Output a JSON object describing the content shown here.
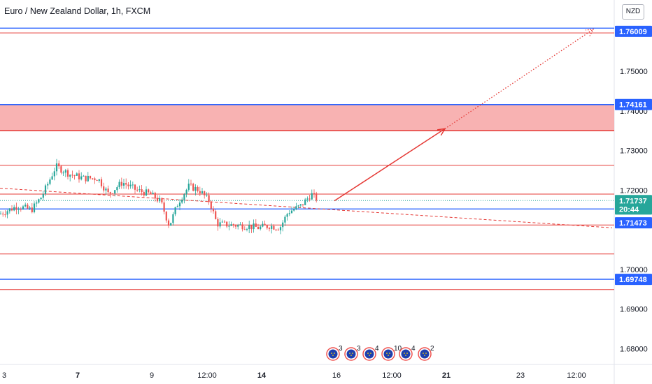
{
  "header": {
    "title": "Euro / New Zealand Dollar, 1h, FXCM",
    "currency_button": "NZD"
  },
  "chart_data": {
    "type": "candlestick",
    "symbol": "EURNZD",
    "timeframe": "1h",
    "ylim": [
      1.676,
      1.768
    ],
    "y_ticks": [
      {
        "value": 1.75,
        "label": "1.75000"
      },
      {
        "value": 1.74,
        "label": "1.74000"
      },
      {
        "value": 1.73,
        "label": "1.73000"
      },
      {
        "value": 1.72,
        "label": "1.72000"
      },
      {
        "value": 1.7,
        "label": "1.70000"
      },
      {
        "value": 1.69,
        "label": "1.69000"
      },
      {
        "value": 1.68,
        "label": "1.68000"
      }
    ],
    "x_ticks": [
      {
        "label": "3",
        "bold": false
      },
      {
        "label": "7",
        "bold": true
      },
      {
        "label": "9",
        "bold": false
      },
      {
        "label": "12:00",
        "bold": false
      },
      {
        "label": "14",
        "bold": true
      },
      {
        "label": "16",
        "bold": false
      },
      {
        "label": "12:00",
        "bold": false
      },
      {
        "label": "21",
        "bold": true
      },
      {
        "label": "23",
        "bold": false
      },
      {
        "label": "12:00",
        "bold": false
      }
    ],
    "price_tags": [
      {
        "label": "1.76009",
        "value": 1.76009,
        "color": "#2962ff"
      },
      {
        "label": "1.74161",
        "value": 1.74161,
        "color": "#2962ff"
      },
      {
        "label": "1.71737",
        "value": 1.71737,
        "color": "#26a69a"
      },
      {
        "label": "20:44",
        "value": 1.71524,
        "color": "#26a69a"
      },
      {
        "label": "1.71473",
        "value": 1.71175,
        "color": "#2962ff"
      },
      {
        "label": "1.69748",
        "value": 1.69748,
        "color": "#2962ff"
      }
    ],
    "horizontal_lines": [
      {
        "value": 1.7609,
        "color": "#2962ff"
      },
      {
        "value": 1.7597,
        "color": "#e53935"
      },
      {
        "value": 1.7416,
        "color": "#2962ff"
      },
      {
        "value": 1.735,
        "color": "#e53935"
      },
      {
        "value": 1.7263,
        "color": "#e53935"
      },
      {
        "value": 1.719,
        "color": "#e53935"
      },
      {
        "value": 1.71524,
        "color": "#2962ff"
      },
      {
        "value": 1.7112,
        "color": "#e53935"
      },
      {
        "value": 1.7039,
        "color": "#e53935"
      },
      {
        "value": 1.6975,
        "color": "#2962ff"
      },
      {
        "value": 1.6949,
        "color": "#e53935"
      }
    ],
    "zone": {
      "from": 1.735,
      "to": 1.7416,
      "color": "#f7a5a5"
    },
    "trendline": {
      "from": [
        0,
        1.7205
      ],
      "to": [
        875,
        1.7105
      ],
      "color": "#e53935"
    },
    "forecast_arrow_solid": {
      "from": [
        478,
        1.7173
      ],
      "to": [
        636,
        1.7355
      ],
      "color": "#e53935"
    },
    "forecast_arrow_dotted": {
      "from": [
        636,
        1.7355
      ],
      "to": [
        848,
        1.7606
      ],
      "color": "#e53935"
    },
    "candles_path": [
      [
        0,
        1.714
      ],
      [
        25,
        1.716
      ],
      [
        45,
        1.715
      ],
      [
        60,
        1.7185
      ],
      [
        80,
        1.726
      ],
      [
        100,
        1.724
      ],
      [
        120,
        1.723
      ],
      [
        140,
        1.723
      ],
      [
        155,
        1.719
      ],
      [
        175,
        1.722
      ],
      [
        195,
        1.72
      ],
      [
        215,
        1.719
      ],
      [
        230,
        1.717
      ],
      [
        242,
        1.711
      ],
      [
        255,
        1.717
      ],
      [
        270,
        1.721
      ],
      [
        285,
        1.72
      ],
      [
        300,
        1.717
      ],
      [
        310,
        1.7115
      ],
      [
        330,
        1.7112
      ],
      [
        350,
        1.711
      ],
      [
        370,
        1.7105
      ],
      [
        385,
        1.711
      ],
      [
        400,
        1.7105
      ],
      [
        412,
        1.7145
      ],
      [
        430,
        1.716
      ],
      [
        445,
        1.719
      ],
      [
        455,
        1.7174
      ]
    ],
    "events": [
      {
        "count": "3",
        "icon": "flag-eu-icon"
      },
      {
        "count": "3",
        "icon": "flag-eu-icon"
      },
      {
        "count": "4",
        "icon": "flag-eu-icon"
      },
      {
        "count": "10",
        "icon": "flag-eu-icon"
      },
      {
        "count": "4",
        "icon": "flag-eu-icon"
      },
      {
        "count": "2",
        "icon": "flag-eu-icon"
      }
    ],
    "up_color": "#26a69a",
    "down_color": "#ef5350"
  }
}
